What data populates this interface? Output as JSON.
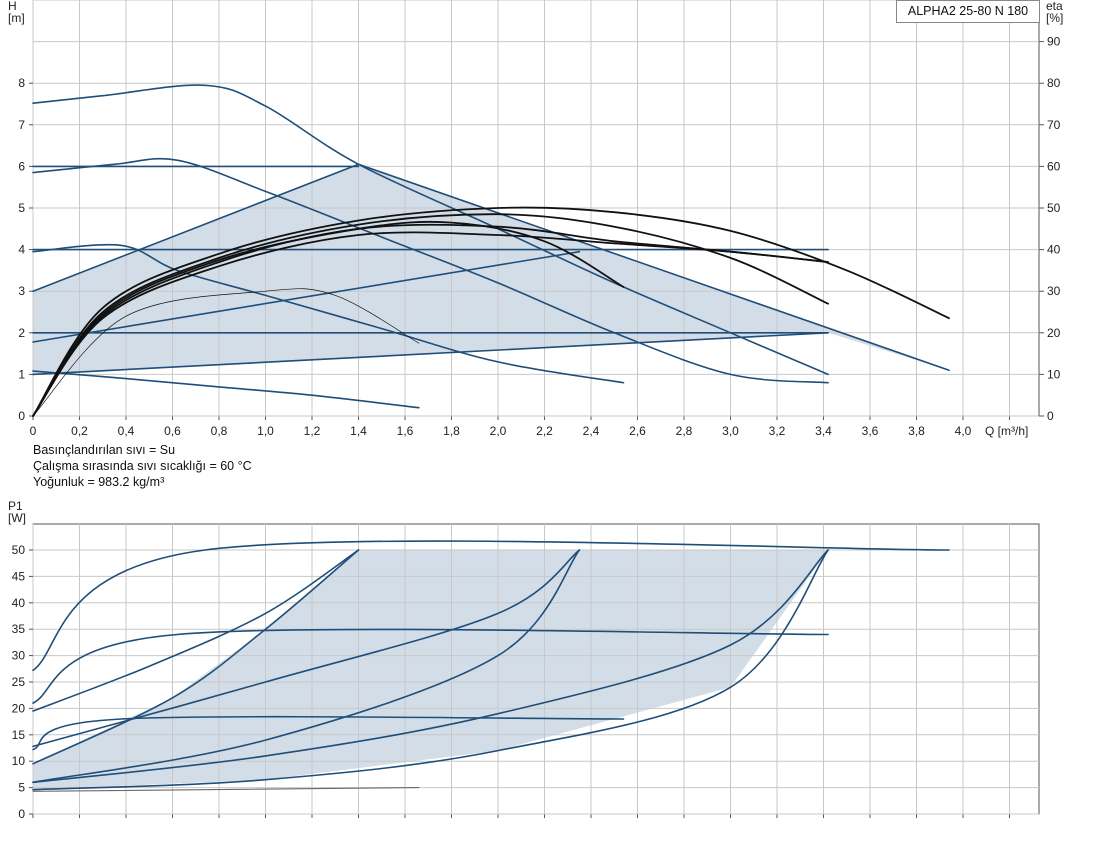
{
  "product": {
    "model": "ALPHA2 25-80 N 180"
  },
  "medium_info": [
    "Basınçlandırılan sıvı = Su",
    "Çalışma sırasında sıvı sıcaklığı = 60 °C",
    "Yoğunluk = 983.2 kg/m³"
  ],
  "colors": {
    "curve": "#1f4e79",
    "efficiency": "#111111",
    "area_fill": "#d3dde8",
    "grid": "#c8c8c8"
  },
  "chart_data": [
    {
      "id": "qh",
      "type": "line",
      "xlabel": "Q [m³/h]",
      "ylabel": "H\n[m]",
      "y2label": "eta\n[%]",
      "xlim": [
        0,
        4.4
      ],
      "ylim": [
        0,
        10
      ],
      "y2lim": [
        0,
        100
      ],
      "xticks": [
        "0",
        "0,2",
        "0,4",
        "0,6",
        "0,8",
        "1,0",
        "1,2",
        "1,4",
        "1,6",
        "1,8",
        "2,0",
        "2,2",
        "2,4",
        "2,6",
        "2,8",
        "3,0",
        "3,2",
        "3,4",
        "3,6",
        "3,8",
        "4,0"
      ],
      "yticks": [
        "0",
        "1",
        "2",
        "3",
        "4",
        "5",
        "6",
        "7",
        "8"
      ],
      "y2ticks": [
        "0",
        "10",
        "20",
        "30",
        "40",
        "50",
        "60",
        "70",
        "80",
        "90"
      ],
      "grid": true,
      "shaded_area": [
        [
          0,
          1
        ],
        [
          0,
          3
        ],
        [
          1.4,
          6.05
        ],
        [
          3.94,
          1.1
        ],
        [
          3.42,
          2
        ],
        [
          0,
          1
        ]
      ],
      "series": [
        {
          "style": "curve",
          "points": [
            [
              0,
              7.52
            ],
            [
              0.3,
              7.7
            ],
            [
              0.74,
              7.95
            ],
            [
              1.0,
              7.45
            ],
            [
              1.4,
              6.05
            ],
            [
              2.0,
              4.5
            ],
            [
              2.5,
              3.2
            ],
            [
              3.0,
              2.0
            ],
            [
              3.42,
              1.0
            ]
          ]
        },
        {
          "style": "curve",
          "points": [
            [
              0,
              5.85
            ],
            [
              0.35,
              6.05
            ],
            [
              0.62,
              6.15
            ],
            [
              1.0,
              5.4
            ],
            [
              1.5,
              4.3
            ],
            [
              2.0,
              3.2
            ],
            [
              2.5,
              2.0
            ],
            [
              3.0,
              1.0
            ],
            [
              3.42,
              0.8
            ]
          ]
        },
        {
          "style": "curve",
          "points": [
            [
              0,
              3.95
            ],
            [
              0.38,
              4.1
            ],
            [
              0.62,
              3.5
            ],
            [
              1.0,
              2.9
            ],
            [
              1.5,
              2.1
            ],
            [
              2.0,
              1.3
            ],
            [
              2.54,
              0.8
            ]
          ]
        },
        {
          "style": "curve",
          "points": [
            [
              0,
              1.08
            ],
            [
              0.4,
              0.9
            ],
            [
              0.8,
              0.7
            ],
            [
              1.2,
              0.5
            ],
            [
              1.66,
              0.2
            ]
          ]
        },
        {
          "style": "curve",
          "points": [
            [
              0,
              6.0
            ],
            [
              1.4,
              6.0
            ]
          ]
        },
        {
          "style": "curve",
          "points": [
            [
              0,
              4.0
            ],
            [
              3.42,
              4.0
            ]
          ]
        },
        {
          "style": "curve",
          "points": [
            [
              0,
              2.0
            ],
            [
              3.42,
              2.0
            ]
          ]
        },
        {
          "style": "curve",
          "points": [
            [
              0,
              3.0
            ],
            [
              1.4,
              6.05
            ]
          ]
        },
        {
          "style": "curve",
          "points": [
            [
              0,
              1.0
            ],
            [
              3.42,
              2.0
            ]
          ]
        },
        {
          "style": "curve",
          "points": [
            [
              0,
              1.78
            ],
            [
              2.35,
              3.95
            ]
          ]
        },
        {
          "style": "curve",
          "points": [
            [
              1.4,
              6.05
            ],
            [
              3.94,
              1.1
            ]
          ]
        },
        {
          "style": "efficiency",
          "points": [
            [
              0,
              0
            ],
            [
              0.3,
              2.6
            ],
            [
              0.8,
              3.9
            ],
            [
              1.4,
              4.7
            ],
            [
              2.0,
              5.0
            ],
            [
              2.5,
              4.9
            ],
            [
              3.0,
              4.45
            ],
            [
              3.5,
              3.5
            ],
            [
              3.94,
              2.35
            ]
          ]
        },
        {
          "style": "efficiency",
          "points": [
            [
              0,
              0
            ],
            [
              0.3,
              2.5
            ],
            [
              0.8,
              3.8
            ],
            [
              1.4,
              4.6
            ],
            [
              2.0,
              4.85
            ],
            [
              2.5,
              4.55
            ],
            [
              3.0,
              3.8
            ],
            [
              3.42,
              2.7
            ]
          ]
        },
        {
          "style": "efficiency",
          "points": [
            [
              0,
              0
            ],
            [
              0.3,
              2.45
            ],
            [
              0.8,
              3.75
            ],
            [
              1.4,
              4.5
            ],
            [
              1.8,
              4.65
            ],
            [
              2.2,
              4.2
            ],
            [
              2.54,
              3.1
            ]
          ]
        },
        {
          "style": "efficiency",
          "points": [
            [
              0,
              0
            ],
            [
              0.3,
              2.4
            ],
            [
              0.8,
              3.7
            ],
            [
              1.4,
              4.5
            ],
            [
              2.0,
              4.55
            ],
            [
              2.5,
              4.2
            ],
            [
              3.0,
              3.95
            ],
            [
              3.42,
              3.7
            ]
          ]
        },
        {
          "style": "efficiency",
          "points": [
            [
              0,
              0
            ],
            [
              0.3,
              2.35
            ],
            [
              0.8,
              3.6
            ],
            [
              1.4,
              4.35
            ],
            [
              2.0,
              4.35
            ],
            [
              2.5,
              4.15
            ],
            [
              3.0,
              3.95
            ],
            [
              3.42,
              3.7
            ]
          ]
        },
        {
          "style": "efficiency-thin",
          "points": [
            [
              0,
              0
            ],
            [
              0.4,
              2.4
            ],
            [
              1.0,
              3.0
            ],
            [
              1.3,
              2.9
            ],
            [
              1.66,
              1.75
            ]
          ]
        }
      ]
    },
    {
      "id": "p1",
      "type": "line",
      "xlabel": "",
      "ylabel": "P1\n[W]",
      "xlim": [
        0,
        4.4
      ],
      "ylim": [
        0,
        55
      ],
      "yticks": [
        "0",
        "5",
        "10",
        "15",
        "20",
        "25",
        "30",
        "35",
        "40",
        "45",
        "50"
      ],
      "grid": true,
      "shaded_area": [
        [
          0,
          4.6
        ],
        [
          1.0,
          6.5
        ],
        [
          2.0,
          12
        ],
        [
          3.0,
          24
        ],
        [
          3.42,
          50
        ],
        [
          1.4,
          50
        ],
        [
          1.0,
          35
        ],
        [
          0.6,
          22
        ],
        [
          0,
          9.5
        ],
        [
          0,
          4.6
        ]
      ],
      "series": [
        {
          "style": "curve",
          "points": [
            [
              0,
              27.2
            ],
            [
              0.74,
              50
            ],
            [
              3.94,
              50
            ]
          ]
        },
        {
          "style": "curve",
          "points": [
            [
              0,
              21
            ],
            [
              0.62,
              34
            ],
            [
              3.42,
              34
            ]
          ]
        },
        {
          "style": "curve",
          "points": [
            [
              0,
              12.2
            ],
            [
              0.38,
              18
            ],
            [
              2.54,
              18
            ]
          ]
        },
        {
          "style": "curve",
          "points": [
            [
              0,
              19.5
            ],
            [
              0.5,
              28
            ],
            [
              1.0,
              38
            ],
            [
              1.4,
              50
            ]
          ]
        },
        {
          "style": "curve",
          "points": [
            [
              0,
              9.5
            ],
            [
              0.6,
              22
            ],
            [
              1.0,
              35
            ],
            [
              1.4,
              50
            ]
          ]
        },
        {
          "style": "curve",
          "points": [
            [
              0,
              12.8
            ],
            [
              1.0,
              25
            ],
            [
              2.0,
              38
            ],
            [
              2.35,
              50
            ]
          ]
        },
        {
          "style": "curve",
          "points": [
            [
              0,
              6
            ],
            [
              1.0,
              14
            ],
            [
              2.0,
              30
            ],
            [
              2.35,
              50
            ]
          ]
        },
        {
          "style": "curve",
          "points": [
            [
              0,
              6.0
            ],
            [
              1.0,
              11
            ],
            [
              2.0,
              19
            ],
            [
              3.0,
              32
            ],
            [
              3.42,
              50
            ]
          ]
        },
        {
          "style": "curve",
          "points": [
            [
              0,
              4.6
            ],
            [
              1.0,
              6.5
            ],
            [
              2.0,
              12
            ],
            [
              3.0,
              24
            ],
            [
              3.42,
              50
            ]
          ]
        },
        {
          "style": "curve-thin",
          "points": [
            [
              0,
              4.3
            ],
            [
              1.66,
              5.0
            ]
          ]
        }
      ]
    }
  ]
}
